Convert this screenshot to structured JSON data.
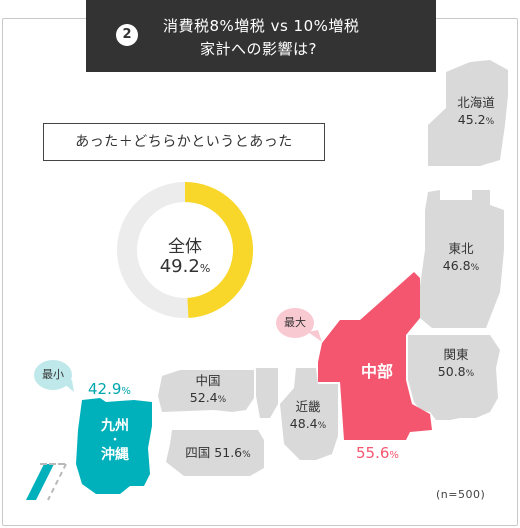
{
  "header": {
    "number": "2",
    "title_line1": "消費税8%増税 vs 10%増税",
    "title_line2": "家計への影響は?"
  },
  "subtitle": "あった＋どちらかというとあった",
  "overall": {
    "label": "全体",
    "value": "49.2",
    "unit": "%"
  },
  "badges": {
    "max": "最大",
    "min": "最小"
  },
  "note": "(n=500)",
  "colors": {
    "highlight_max": "#f5566f",
    "highlight_min": "#00b1bb",
    "region": "#d9d9d9",
    "donut_fill": "#f9d72a",
    "donut_track": "#ececec",
    "title_bg": "#333333"
  },
  "chart_data": {
    "type": "map",
    "overall": 49.2,
    "unit": "%",
    "regions": [
      {
        "name": "北海道",
        "value": 45.2
      },
      {
        "name": "東北",
        "value": 46.8
      },
      {
        "name": "関東",
        "value": 50.8
      },
      {
        "name": "中部",
        "value": 55.6,
        "highlight": "最大"
      },
      {
        "name": "近畿",
        "value": 48.4
      },
      {
        "name": "中国",
        "value": 52.4
      },
      {
        "name": "四国",
        "value": 51.6
      },
      {
        "name": "九州・沖縄",
        "value": 42.9,
        "highlight": "最小"
      }
    ]
  },
  "labels": {
    "hokkaido": {
      "name": "北海道",
      "value": "45.2"
    },
    "tohoku": {
      "name": "東北",
      "value": "46.8"
    },
    "kanto": {
      "name": "関東",
      "value": "50.8"
    },
    "kinki": {
      "name": "近畿",
      "value": "48.4"
    },
    "chugoku": {
      "name": "中国",
      "value": "52.4"
    },
    "shikoku": {
      "name": "四国",
      "value": "51.6"
    },
    "chubu": {
      "name": "中部",
      "value": "55.6"
    },
    "kyushu": {
      "name_top": "九州",
      "dot": "・",
      "name_bottom": "沖縄",
      "value": "42.9"
    },
    "unit": "%"
  }
}
